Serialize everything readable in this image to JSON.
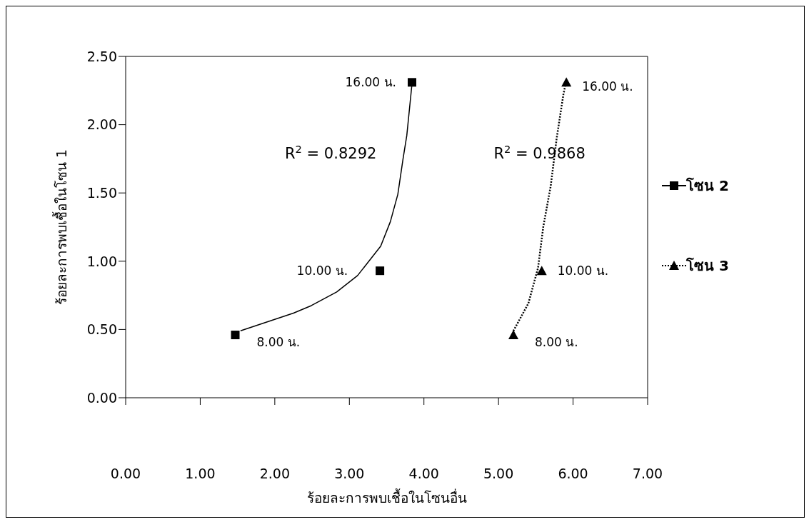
{
  "chart_data": {
    "type": "scatter",
    "xlabel": "ร้อยละการพบเชื้อในโซนอื่น",
    "ylabel": "ร้อยละการพบเชื้อในโซน 1",
    "xlim": [
      0,
      7
    ],
    "xticks": [
      {
        "value": 0,
        "label": "0.00"
      },
      {
        "value": 1,
        "label": "1.00"
      },
      {
        "value": 2,
        "label": "2.00"
      },
      {
        "value": 3,
        "label": "3.00"
      },
      {
        "value": 4,
        "label": "4.00"
      },
      {
        "value": 5,
        "label": "5.00"
      },
      {
        "value": 6,
        "label": "6.00"
      },
      {
        "value": 7,
        "label": "7.00"
      }
    ],
    "ylim": [
      0,
      2.5
    ],
    "yticks": [
      {
        "value": 0,
        "label": "0.00"
      },
      {
        "value": 0.5,
        "label": "0.50"
      },
      {
        "value": 1,
        "label": "1.00"
      },
      {
        "value": 1.5,
        "label": "1.50"
      },
      {
        "value": 2,
        "label": "2.00"
      },
      {
        "value": 2.5,
        "label": "2.50"
      }
    ],
    "grid": false,
    "legend": "right",
    "series": [
      {
        "name": "โซน 2",
        "marker": "square",
        "line_style": "solid",
        "color": "#000000",
        "x": [
          1.47,
          3.41,
          3.84
        ],
        "values": [
          0.46,
          0.93,
          2.31
        ]
      },
      {
        "name": "โซน 3",
        "marker": "triangle",
        "line_style": "dotted",
        "color": "#000000",
        "x": [
          5.2,
          5.58,
          5.91
        ],
        "values": [
          0.46,
          0.93,
          2.31
        ]
      },
      {
        "type": "line",
        "line_style": "solid",
        "marker": "none",
        "color": "#000000",
        "x": [
          1.54,
          2.25,
          2.49,
          2.83,
          3.11,
          3.42,
          3.55,
          3.65,
          3.72,
          3.77,
          3.84
        ],
        "values": [
          0.49,
          0.62,
          0.675,
          0.775,
          0.895,
          1.11,
          1.29,
          1.49,
          1.75,
          1.92,
          2.3
        ]
      },
      {
        "type": "line",
        "line_style": "dotted",
        "marker": "none",
        "color": "#000000",
        "x": [
          5.2,
          5.4,
          5.53,
          5.6,
          5.7,
          5.78,
          5.87,
          5.9
        ],
        "values": [
          0.49,
          0.69,
          0.95,
          1.25,
          1.55,
          1.9,
          2.22,
          2.3
        ]
      }
    ],
    "annotations": [
      {
        "text": "16.00 น.",
        "x": 3.84,
        "y": 2.31
      },
      {
        "text": "10.00 น.",
        "x": 3.41,
        "y": 0.93
      },
      {
        "text": "8.00 น.",
        "x": 1.47,
        "y": 0.46
      },
      {
        "text": "16.00 น.",
        "x": 5.91,
        "y": 2.31
      },
      {
        "text": "10.00 น.",
        "x": 5.58,
        "y": 0.93
      },
      {
        "text": "8.00 น.",
        "x": 5.2,
        "y": 0.46
      },
      "R$^{2}$ = 0.8292",
      "R$^{2}$ = 0.9868"
    ]
  }
}
